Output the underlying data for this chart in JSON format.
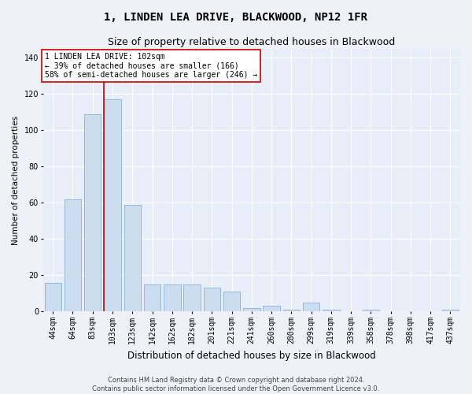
{
  "title": "1, LINDEN LEA DRIVE, BLACKWOOD, NP12 1FR",
  "subtitle": "Size of property relative to detached houses in Blackwood",
  "xlabel": "Distribution of detached houses by size in Blackwood",
  "ylabel": "Number of detached properties",
  "categories": [
    "44sqm",
    "64sqm",
    "83sqm",
    "103sqm",
    "123sqm",
    "142sqm",
    "162sqm",
    "182sqm",
    "201sqm",
    "221sqm",
    "241sqm",
    "260sqm",
    "280sqm",
    "299sqm",
    "319sqm",
    "339sqm",
    "358sqm",
    "378sqm",
    "398sqm",
    "417sqm",
    "437sqm"
  ],
  "values": [
    16,
    62,
    109,
    117,
    59,
    15,
    15,
    15,
    13,
    11,
    2,
    3,
    1,
    5,
    1,
    0,
    1,
    0,
    0,
    0,
    1
  ],
  "bar_color": "#ccddf0",
  "bar_edge_color": "#7aaad0",
  "highlight_index": 3,
  "highlight_line_color": "#cc0000",
  "ylim": [
    0,
    145
  ],
  "yticks": [
    0,
    20,
    40,
    60,
    80,
    100,
    120,
    140
  ],
  "annotation_box_text": "1 LINDEN LEA DRIVE: 102sqm\n← 39% of detached houses are smaller (166)\n58% of semi-detached houses are larger (246) →",
  "footer_line1": "Contains HM Land Registry data © Crown copyright and database right 2024.",
  "footer_line2": "Contains public sector information licensed under the Open Government Licence v3.0.",
  "bg_color": "#eef2f8",
  "plot_bg_color": "#e8eef8",
  "grid_color": "#ffffff",
  "title_fontsize": 10,
  "subtitle_fontsize": 9,
  "xlabel_fontsize": 8.5,
  "ylabel_fontsize": 7.5,
  "tick_fontsize": 7,
  "annotation_fontsize": 7,
  "footer_fontsize": 6
}
